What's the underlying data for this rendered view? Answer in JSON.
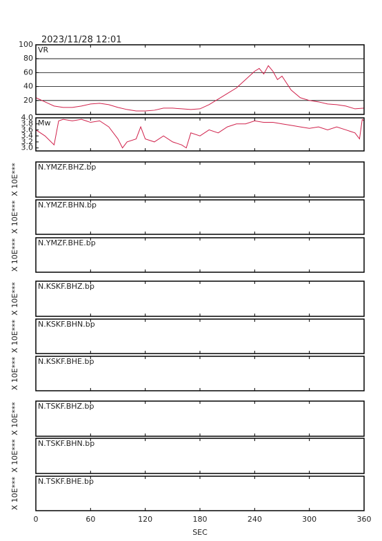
{
  "title": "2023/11/28 12:01",
  "x_axis": {
    "xlim": [
      0,
      360
    ],
    "xticks": [
      0,
      60,
      120,
      180,
      240,
      300,
      360
    ],
    "label": "SEC"
  },
  "chart_data": [
    {
      "type": "line",
      "y_label": "VR",
      "color": "#d0204a",
      "grid": true,
      "ylim": [
        0,
        100
      ],
      "yticks": [
        20,
        40,
        60,
        80,
        100
      ],
      "x": [
        0,
        10,
        20,
        30,
        40,
        50,
        60,
        70,
        80,
        90,
        100,
        110,
        120,
        130,
        140,
        150,
        160,
        170,
        180,
        190,
        200,
        210,
        220,
        230,
        240,
        245,
        250,
        255,
        260,
        265,
        270,
        280,
        290,
        300,
        310,
        320,
        330,
        340,
        350,
        360
      ],
      "values": [
        24,
        18,
        12,
        10,
        10,
        12,
        15,
        16,
        14,
        10,
        7,
        5,
        5,
        6,
        9,
        9,
        8,
        7,
        8,
        14,
        22,
        30,
        38,
        50,
        62,
        66,
        58,
        70,
        62,
        50,
        55,
        35,
        24,
        20,
        18,
        15,
        14,
        12,
        8,
        9
      ]
    },
    {
      "type": "line",
      "y_label": "Mw",
      "color": "#d0204a",
      "grid": false,
      "ylim": [
        2.9,
        4.0
      ],
      "yticks": [
        {
          "value": 3,
          "label": "3.0"
        },
        3.2,
        3.4,
        3.6,
        3.8,
        {
          "value": 4,
          "label": "4.0"
        }
      ],
      "x": [
        0,
        10,
        20,
        25,
        30,
        40,
        50,
        60,
        70,
        80,
        90,
        95,
        100,
        110,
        115,
        120,
        130,
        140,
        150,
        160,
        165,
        170,
        180,
        190,
        200,
        210,
        220,
        230,
        240,
        250,
        260,
        270,
        280,
        290,
        300,
        310,
        320,
        330,
        340,
        350,
        355,
        358,
        360
      ],
      "values": [
        3.6,
        3.4,
        3.1,
        3.9,
        3.95,
        3.9,
        3.95,
        3.85,
        3.9,
        3.7,
        3.3,
        3.0,
        3.2,
        3.3,
        3.7,
        3.3,
        3.2,
        3.4,
        3.2,
        3.1,
        3.0,
        3.5,
        3.4,
        3.6,
        3.5,
        3.7,
        3.8,
        3.8,
        3.9,
        3.85,
        3.85,
        3.8,
        3.75,
        3.7,
        3.65,
        3.7,
        3.6,
        3.7,
        3.6,
        3.5,
        3.3,
        3.95,
        3.9
      ]
    }
  ],
  "traces": [
    {
      "label": "N.YMZF.BHZ.bp",
      "scale": "X 10E***"
    },
    {
      "label": "N.YMZF.BHN.bp",
      "scale": "X 10E***"
    },
    {
      "label": "N.YMZF.BHE.bp",
      "scale": "X 10E***"
    },
    {
      "label": "N.KSKF.BHZ.bp",
      "scale": "X 10E***"
    },
    {
      "label": "N.KSKF.BHN.bp",
      "scale": "X 10E***"
    },
    {
      "label": "N.KSKF.BHE.bp",
      "scale": "X 10E***"
    },
    {
      "label": "N.TSKF.BHZ.bp",
      "scale": "X 10E***"
    },
    {
      "label": "N.TSKF.BHN.bp",
      "scale": "X 10E***"
    },
    {
      "label": "N.TSKF.BHE.bp",
      "scale": "X 10E***"
    }
  ]
}
